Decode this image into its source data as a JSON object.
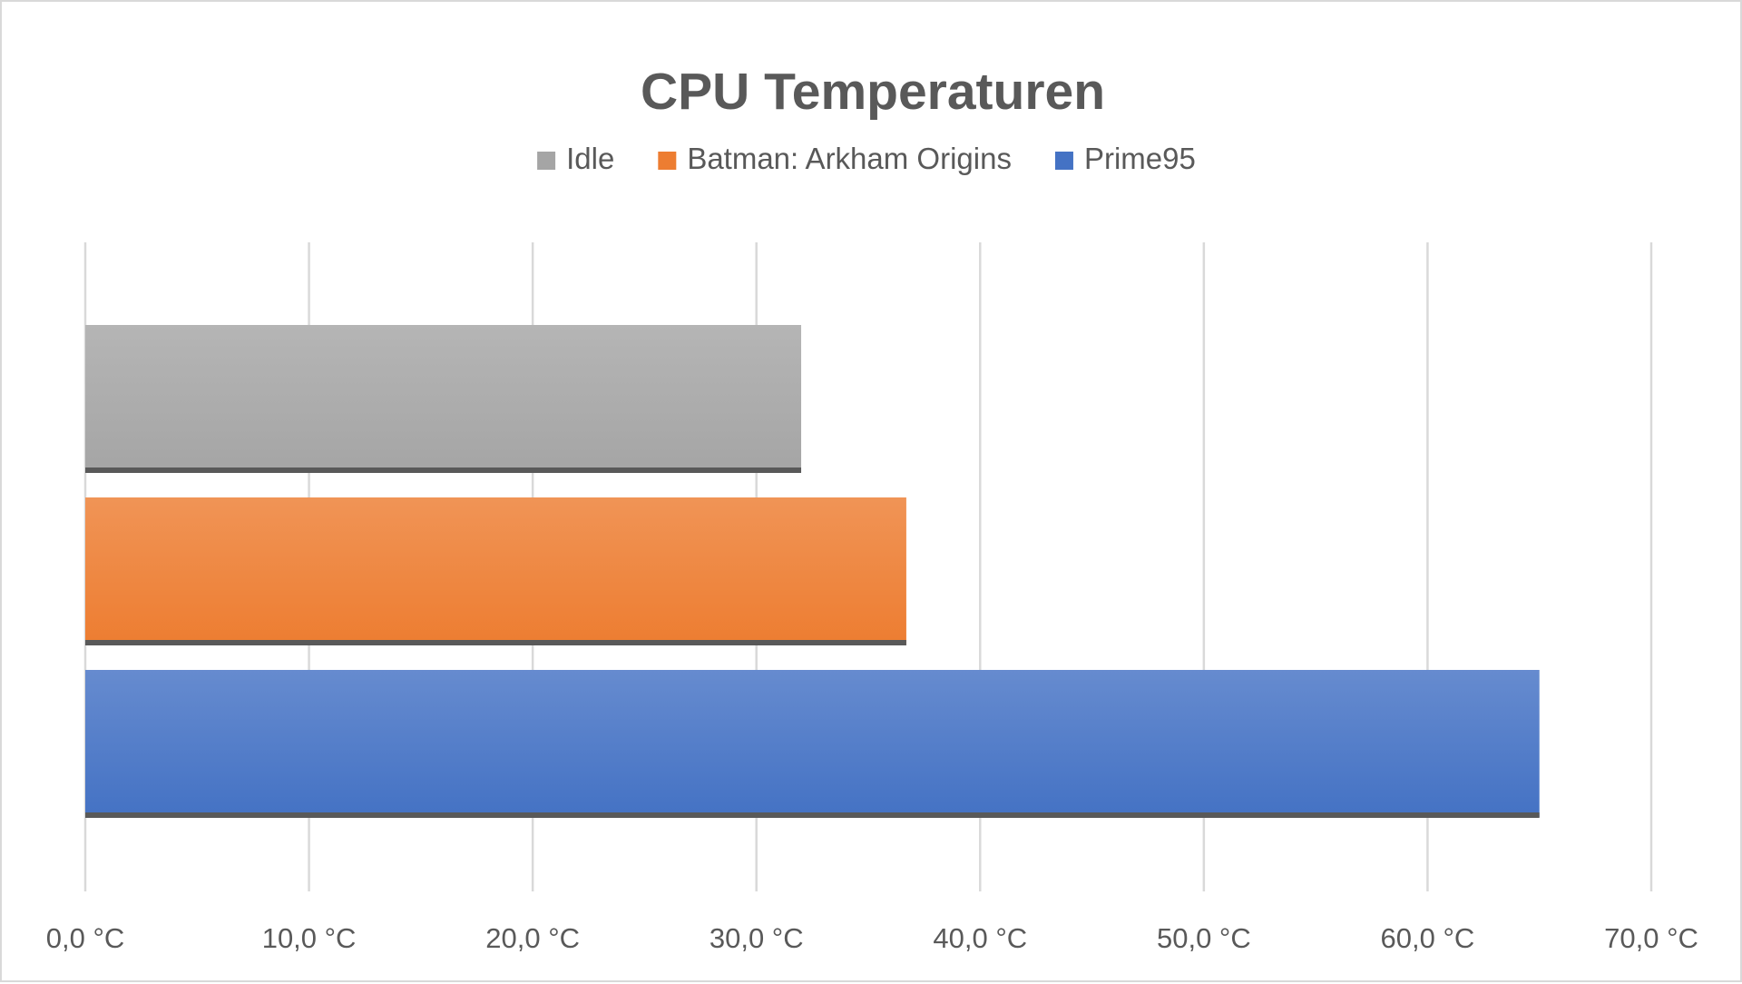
{
  "chart_data": {
    "type": "bar",
    "orientation": "horizontal",
    "title": "CPU Temperaturen",
    "xlabel": "",
    "ylabel": "",
    "xlim": [
      0,
      70
    ],
    "x_ticks": [
      0,
      10,
      20,
      30,
      40,
      50,
      60,
      70
    ],
    "x_tick_labels": [
      "0,0 °C",
      "10,0 °C",
      "20,0 °C",
      "30,0 °C",
      "40,0 °C",
      "50,0 °C",
      "60,0 °C",
      "70,0 °C"
    ],
    "grid": true,
    "legend_position": "top",
    "series": [
      {
        "name": "Idle",
        "value": 32.0,
        "color": "#a5a5a5"
      },
      {
        "name": "Batman: Arkham Origins",
        "value": 36.7,
        "color": "#ed7d31"
      },
      {
        "name": "Prime95",
        "value": 65.0,
        "color": "#4472c4"
      }
    ]
  }
}
